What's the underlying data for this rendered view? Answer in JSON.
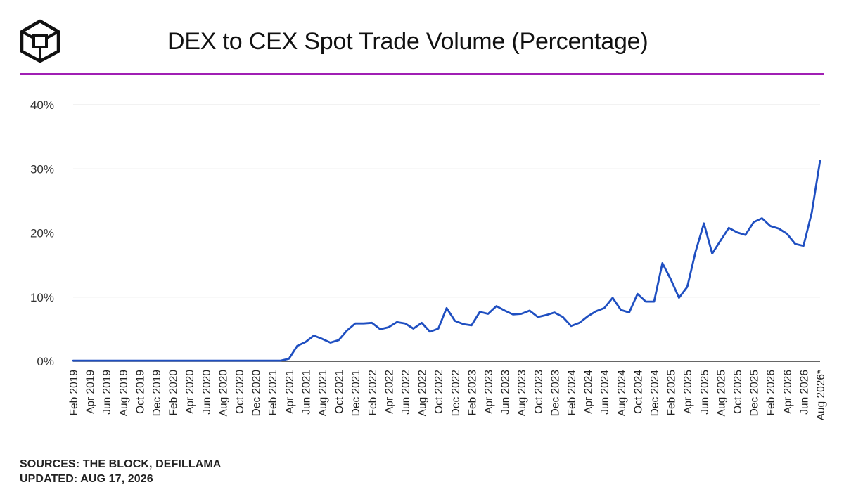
{
  "header": {
    "title": "DEX to CEX Spot Trade Volume (Percentage)",
    "logo_icon": "the-block-cube-logo"
  },
  "colors": {
    "line": "#1f4fc1",
    "accent_rule": "#a01fb4",
    "grid": "#e6e6e6",
    "axis": "#333333",
    "text": "#111111"
  },
  "footer": {
    "sources": "SOURCES: THE BLOCK, DEFILLAMA",
    "updated": "UPDATED: AUG 17, 2026"
  },
  "chart_data": {
    "type": "line",
    "title": "DEX to CEX Spot Trade Volume (Percentage)",
    "xlabel": "",
    "ylabel": "",
    "ylim": [
      0,
      40
    ],
    "y_ticks": [
      "0%",
      "10%",
      "20%",
      "30%",
      "40%"
    ],
    "grid": true,
    "legend": "none",
    "x_tick_labels": [
      "Feb 2019",
      "Apr 2019",
      "Jun 2019",
      "Aug 2019",
      "Oct 2019",
      "Dec 2019",
      "Feb 2020",
      "Apr 2020",
      "Jun 2020",
      "Aug 2020",
      "Oct 2020",
      "Dec 2020",
      "Feb 2021",
      "Apr 2021",
      "Jun 2021",
      "Aug 2021",
      "Oct 2021",
      "Dec 2021",
      "Feb 2022",
      "Apr 2022",
      "Jun 2022",
      "Aug 2022",
      "Oct 2022",
      "Dec 2022",
      "Feb 2023",
      "Apr 2023",
      "Jun 2023",
      "Aug 2023",
      "Oct 2023",
      "Dec 2023",
      "Feb 2024",
      "Apr 2024",
      "Jun 2024",
      "Aug 2024",
      "Oct 2024",
      "Dec 2024",
      "Feb 2025",
      "Apr 2025",
      "Jun 2025",
      "Aug 2025",
      "Oct 2025",
      "Dec 2025",
      "Feb 2026",
      "Apr 2026",
      "Jun 2026",
      "Aug 2026*"
    ],
    "x": [
      "Feb 2019",
      "Mar 2019",
      "Apr 2019",
      "May 2019",
      "Jun 2019",
      "Jul 2019",
      "Aug 2019",
      "Sep 2019",
      "Oct 2019",
      "Nov 2019",
      "Dec 2019",
      "Jan 2020",
      "Feb 2020",
      "Mar 2020",
      "Apr 2020",
      "May 2020",
      "Jun 2020",
      "Jul 2020",
      "Aug 2020",
      "Sep 2020",
      "Oct 2020",
      "Nov 2020",
      "Dec 2020",
      "Jan 2021",
      "Feb 2021",
      "Mar 2021",
      "Apr 2021",
      "May 2021",
      "Jun 2021",
      "Jul 2021",
      "Aug 2021",
      "Sep 2021",
      "Oct 2021",
      "Nov 2021",
      "Dec 2021",
      "Jan 2022",
      "Feb 2022",
      "Mar 2022",
      "Apr 2022",
      "May 2022",
      "Jun 2022",
      "Jul 2022",
      "Aug 2022",
      "Sep 2022",
      "Oct 2022",
      "Nov 2022",
      "Dec 2022",
      "Jan 2023",
      "Feb 2023",
      "Mar 2023",
      "Apr 2023",
      "May 2023",
      "Jun 2023",
      "Jul 2023",
      "Aug 2023",
      "Sep 2023",
      "Oct 2023",
      "Nov 2023",
      "Dec 2023",
      "Jan 2024",
      "Feb 2024",
      "Mar 2024",
      "Apr 2024",
      "May 2024",
      "Jun 2024",
      "Jul 2024",
      "Aug 2024",
      "Sep 2024",
      "Oct 2024",
      "Nov 2024",
      "Dec 2024",
      "Jan 2025",
      "Feb 2025",
      "Mar 2025",
      "Apr 2025",
      "May 2025",
      "Jun 2025",
      "Jul 2025",
      "Aug 2025",
      "Sep 2025",
      "Oct 2025",
      "Nov 2025",
      "Dec 2025",
      "Jan 2026",
      "Feb 2026",
      "Mar 2026",
      "Apr 2026",
      "May 2026",
      "Jun 2026",
      "Jul 2026",
      "Aug 2026*"
    ],
    "series": [
      {
        "values": [
          0.1,
          0.1,
          0.1,
          0.1,
          0.1,
          0.1,
          0.1,
          0.1,
          0.1,
          0.1,
          0.1,
          0.1,
          0.1,
          0.1,
          0.1,
          0.1,
          0.1,
          0.1,
          0.1,
          0.1,
          0.1,
          0.1,
          0.1,
          0.1,
          0.1,
          0.1,
          0.4,
          2.4,
          3.0,
          4.0,
          3.5,
          2.9,
          3.3,
          4.8,
          5.9,
          5.9,
          6.0,
          5.0,
          5.3,
          6.1,
          5.9,
          5.1,
          6.0,
          4.6,
          5.1,
          8.3,
          6.3,
          5.8,
          5.6,
          7.7,
          7.4,
          8.6,
          7.9,
          7.3,
          7.4,
          7.9,
          6.9,
          7.2,
          7.6,
          6.9,
          5.5,
          6.0,
          7.0,
          7.8,
          8.3,
          9.9,
          8.0,
          7.6,
          10.5,
          9.3,
          9.3,
          15.3,
          12.8,
          9.9,
          11.6,
          17.1,
          21.5,
          16.8,
          18.8,
          20.8,
          20.1,
          19.7,
          21.7,
          22.3,
          21.1,
          20.7,
          19.9,
          18.3,
          18.0,
          23.2,
          31.3
        ]
      }
    ]
  }
}
